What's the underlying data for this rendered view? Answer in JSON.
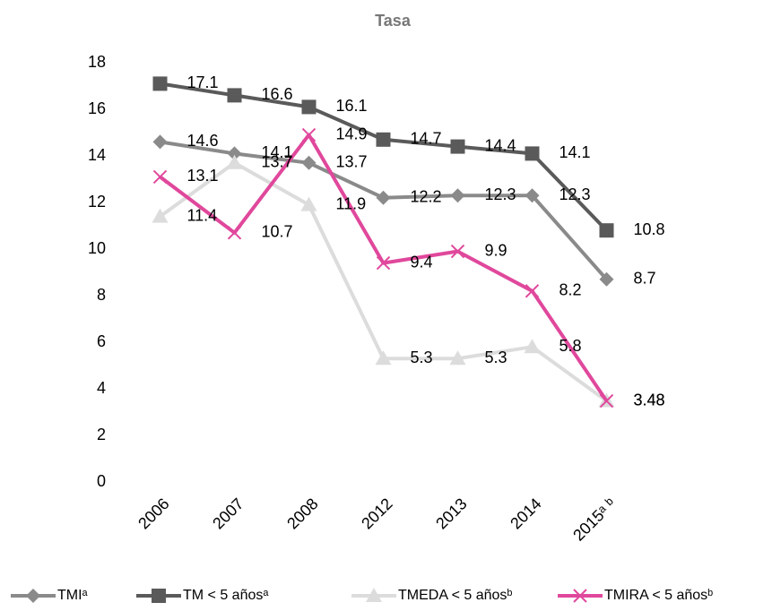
{
  "chart_data": {
    "type": "line",
    "title": "Tasa",
    "categories": [
      "2006",
      "2007",
      "2008",
      "2012",
      "2013",
      "2014",
      "2015ᵃ ᵇ"
    ],
    "series": [
      {
        "name": "TMIᵃ",
        "color": "#8a8a8a",
        "marker": "diamond",
        "values": [
          14.6,
          14.1,
          13.7,
          12.2,
          12.3,
          12.3,
          8.7
        ]
      },
      {
        "name": "TM < 5 añosᵃ",
        "color": "#5a5a5a",
        "marker": "square",
        "values": [
          17.1,
          16.6,
          16.1,
          14.7,
          14.4,
          14.1,
          10.8
        ]
      },
      {
        "name": "TMEDA < 5 añosᵇ",
        "color": "#dcdcdc",
        "marker": "triangle",
        "values": [
          11.4,
          13.7,
          11.9,
          5.3,
          5.3,
          5.8,
          3.48
        ]
      },
      {
        "name": "TMIRA < 5 añosᵇ",
        "color": "#e0489c",
        "marker": "x",
        "values": [
          13.1,
          10.7,
          14.9,
          9.4,
          9.9,
          8.2,
          3.48
        ]
      }
    ],
    "ylim": [
      0,
      18
    ],
    "yticks": [
      0,
      2,
      4,
      6,
      8,
      10,
      12,
      14,
      16,
      18
    ],
    "grid": false
  }
}
